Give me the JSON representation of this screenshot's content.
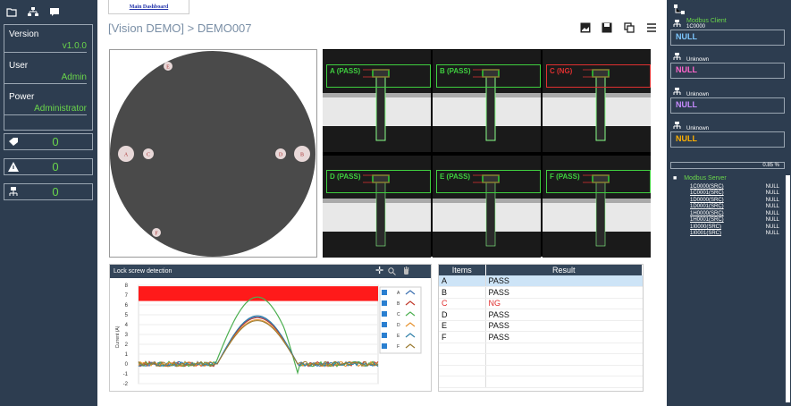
{
  "left": {
    "version_label": "Version",
    "version_value": "v1.0.0",
    "user_label": "User",
    "user_value": "Admin",
    "power_label": "Power",
    "power_value": "Administrator",
    "counts": [
      "0",
      "0",
      "0"
    ]
  },
  "main": {
    "tab": "Main Dashboard",
    "title": "[Vision DEMO] > DEMO007",
    "wheel_points": [
      "A",
      "B",
      "C",
      "D",
      "E",
      "F"
    ],
    "cells": [
      {
        "label": "A (PASS)",
        "status": "pass"
      },
      {
        "label": "B (PASS)",
        "status": "pass"
      },
      {
        "label": "C (NG)",
        "status": "ng"
      },
      {
        "label": "D (PASS)",
        "status": "pass"
      },
      {
        "label": "E (PASS)",
        "status": "pass"
      },
      {
        "label": "F (PASS)",
        "status": "pass"
      }
    ],
    "chart_title": "Lock screw detection",
    "table": {
      "headers": [
        "Items",
        "Result"
      ],
      "rows": [
        [
          "A",
          "PASS"
        ],
        [
          "B",
          "PASS"
        ],
        [
          "C",
          "NG"
        ],
        [
          "D",
          "PASS"
        ],
        [
          "E",
          "PASS"
        ],
        [
          "F",
          "PASS"
        ]
      ]
    }
  },
  "chart_data": {
    "type": "line",
    "ylabel": "Current (A)",
    "ylim": [
      -2,
      8
    ],
    "yticks": [
      "8",
      "7",
      "6",
      "5",
      "4",
      "3",
      "2",
      "1",
      "0",
      "-1",
      "-2"
    ],
    "series": [
      {
        "name": "A",
        "color": "#3a6fb0",
        "peak": 4.8
      },
      {
        "name": "B",
        "color": "#c0392b",
        "peak": 4.7
      },
      {
        "name": "C",
        "color": "#4caf50",
        "peak": 6.8
      },
      {
        "name": "D",
        "color": "#e6922e",
        "peak": 4.5
      },
      {
        "name": "E",
        "color": "#2f7fa8",
        "peak": 4.9
      },
      {
        "name": "F",
        "color": "#9a7a30",
        "peak": 4.4
      }
    ]
  },
  "right": {
    "client_title": "Modbus Client",
    "client_id": "1C0000",
    "unknown": "Unknown",
    "nulls": [
      {
        "text": "NULL",
        "color": "#7ec8ff"
      },
      {
        "text": "NULL",
        "color": "#ff66cc"
      },
      {
        "text": "NULL",
        "color": "#c88cff"
      },
      {
        "text": "NULL",
        "color": "#ffb000"
      }
    ],
    "percent": "0.85 %",
    "server_title": "Modbus Server",
    "server_rows": [
      [
        "1C0000(SRC)",
        "NULL"
      ],
      [
        "1C0001(SRC)",
        "NULL"
      ],
      [
        "1D0000(SRC)",
        "NULL"
      ],
      [
        "1D0001(SRC)",
        "NULL"
      ],
      [
        "1H0000(SRC)",
        "NULL"
      ],
      [
        "1H0001(SRC)",
        "NULL"
      ],
      [
        "1I0000(SRC)",
        "NULL"
      ],
      [
        "1I0001(SRC)",
        "NULL"
      ]
    ]
  }
}
